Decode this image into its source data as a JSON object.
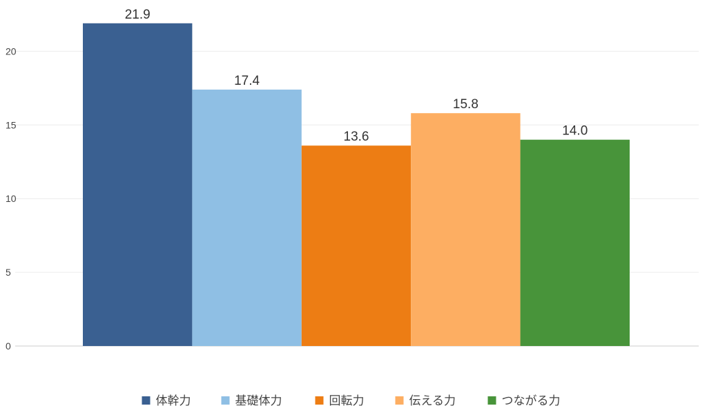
{
  "chart_data": {
    "type": "bar",
    "categories": [
      "体幹力",
      "基礎体力",
      "回転力",
      "伝える力",
      "つながる力"
    ],
    "values": [
      21.9,
      17.4,
      13.6,
      15.8,
      14.0
    ],
    "value_labels": [
      "21.9",
      "17.4",
      "13.6",
      "15.8",
      "14.0"
    ],
    "colors": [
      "#3a6091",
      "#8fbfe4",
      "#ed7d14",
      "#fdae62",
      "#48943a"
    ],
    "y_ticks": [
      0,
      5,
      10,
      15,
      20
    ],
    "y_tick_labels": [
      "0",
      "5",
      "10",
      "15",
      "20"
    ],
    "ylim": [
      0,
      22
    ],
    "grid": true,
    "legend_position": "bottom",
    "title": "",
    "xlabel": "",
    "ylabel": ""
  }
}
